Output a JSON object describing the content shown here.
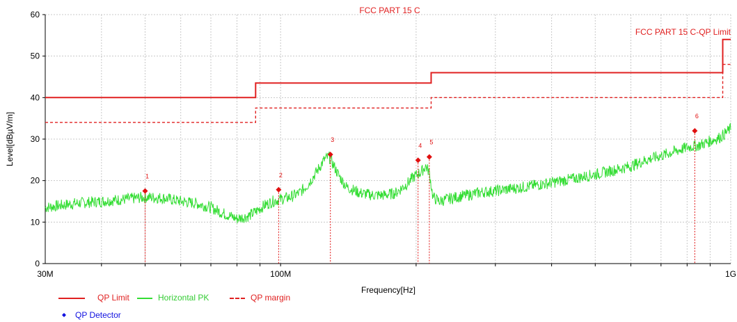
{
  "chart_data": {
    "type": "line",
    "title": "FCC PART 15 C",
    "limit_label": "FCC PART 15 C-QP Limit",
    "xlabel": "Frequency[Hz]",
    "ylabel": "Level[dBµV/m]",
    "xscale": "log",
    "xlim": [
      30000000,
      1000000000
    ],
    "ylim": [
      0,
      60
    ],
    "grid": true,
    "x_tick_labels": [
      {
        "value": 30000000,
        "label": "30M"
      },
      {
        "value": 100000000,
        "label": "100M"
      },
      {
        "value": 1000000000,
        "label": "1G"
      }
    ],
    "y_ticks": [
      0,
      10,
      20,
      30,
      40,
      50,
      60
    ],
    "series": [
      {
        "name": "QP Limit",
        "style": "solid",
        "color": "#e02020",
        "step_x_mhz": [
          30,
          88,
          88,
          216,
          216,
          960,
          960,
          1000
        ],
        "step_y": [
          40,
          40,
          43.5,
          43.5,
          46,
          46,
          54,
          54
        ]
      },
      {
        "name": "QP margin",
        "style": "dashed",
        "color": "#e02020",
        "step_x_mhz": [
          30,
          88,
          88,
          216,
          216,
          960,
          960,
          1000
        ],
        "step_y": [
          34,
          34,
          37.5,
          37.5,
          40,
          40,
          48,
          48
        ]
      },
      {
        "name": "Horizontal PK",
        "style": "solid",
        "color": "#33dd33",
        "x_mhz": [
          30,
          35,
          40,
          45,
          50,
          55,
          60,
          65,
          70,
          75,
          80,
          85,
          88,
          92,
          96,
          100,
          105,
          110,
          115,
          120,
          125,
          128,
          130,
          135,
          140,
          150,
          160,
          170,
          180,
          190,
          198,
          205,
          210,
          214,
          218,
          225,
          240,
          260,
          280,
          300,
          350,
          400,
          450,
          500,
          550,
          600,
          650,
          700,
          750,
          800,
          850,
          900,
          950,
          1000
        ],
        "y": [
          13.5,
          14.5,
          15,
          15.5,
          16,
          15.8,
          15,
          14.5,
          13.5,
          12,
          10.8,
          11.5,
          12.5,
          14,
          15,
          15.5,
          16,
          17,
          19,
          22,
          25,
          25.8,
          24.5,
          21,
          18.5,
          17,
          16.5,
          16.5,
          17,
          19,
          21,
          22,
          23.5,
          22,
          16,
          15,
          15.8,
          16.5,
          17.2,
          17.5,
          18.5,
          19.5,
          20.5,
          21.5,
          22.5,
          23.5,
          25,
          26,
          27,
          28,
          28.5,
          29.5,
          30.5,
          32.5
        ]
      }
    ],
    "markers": {
      "name": "QP Detector",
      "color": "#e01010",
      "points": [
        {
          "label": "1",
          "x_mhz": 50,
          "y": 17.5
        },
        {
          "label": "2",
          "x_mhz": 99,
          "y": 17.8
        },
        {
          "label": "3",
          "x_mhz": 129,
          "y": 26.3
        },
        {
          "label": "4",
          "x_mhz": 202,
          "y": 24.9
        },
        {
          "label": "5",
          "x_mhz": 214,
          "y": 25.7
        },
        {
          "label": "6",
          "x_mhz": 832,
          "y": 32
        }
      ]
    }
  },
  "legend": {
    "qp_limit": "QP Limit",
    "horizontal_pk": "Horizontal PK",
    "qp_margin": "QP margin",
    "qp_detector": "QP Detector"
  },
  "colors": {
    "limit": "#e02020",
    "trace": "#33dd33",
    "marker": "#e01010",
    "detector_legend": "#1010e0"
  }
}
